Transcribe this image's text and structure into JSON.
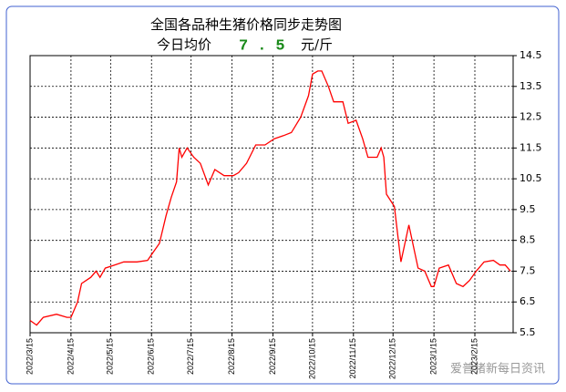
{
  "chart_data": {
    "type": "line",
    "title": "全国各品种生猪价格同步走势图",
    "subtitle": "今日均价",
    "today_price": 7.5,
    "unit": "元/斤",
    "watermark": "爱普猪新每日资讯",
    "xlim": [
      0,
      366
    ],
    "ylim": [
      5.5,
      14.5
    ],
    "grid": true,
    "yticks": [
      5.5,
      6.5,
      7.5,
      8.5,
      9.5,
      10.5,
      11.5,
      12.5,
      13.5,
      14.5
    ],
    "xticks": [
      {
        "value": 0,
        "label": "2022/3/15"
      },
      {
        "value": 31,
        "label": "2022/4/15"
      },
      {
        "value": 61,
        "label": "2022/5/15"
      },
      {
        "value": 92,
        "label": "2022/6/15"
      },
      {
        "value": 122,
        "label": "2022/7/15"
      },
      {
        "value": 153,
        "label": "2022/8/15"
      },
      {
        "value": 184,
        "label": "2022/9/15"
      },
      {
        "value": 214,
        "label": "2022/10/15"
      },
      {
        "value": 245,
        "label": "2022/11/15"
      },
      {
        "value": 275,
        "label": "2022/12/15"
      },
      {
        "value": 306,
        "label": "2023/1/15"
      },
      {
        "value": 337,
        "label": "2023/2/15"
      }
    ],
    "series": [
      {
        "color": "#ff0000",
        "x": [
          0,
          5,
          10,
          20,
          28,
          31,
          36,
          39,
          46,
          50,
          53,
          57,
          64,
          71,
          81,
          89,
          93,
          98,
          103,
          107,
          111,
          113,
          115,
          119,
          124,
          129,
          135,
          140,
          147,
          154,
          158,
          164,
          171,
          178,
          185,
          192,
          198,
          205,
          211,
          214,
          218,
          221,
          226,
          230,
          237,
          241,
          247,
          252,
          256,
          263,
          266,
          268,
          270,
          276,
          281,
          287,
          294,
          299,
          304,
          306,
          310,
          317,
          323,
          328,
          333,
          338,
          344,
          351,
          356,
          360,
          364
        ],
        "values": [
          5.9,
          5.75,
          6.0,
          6.1,
          6.0,
          6.0,
          6.5,
          7.1,
          7.3,
          7.5,
          7.3,
          7.6,
          7.7,
          7.8,
          7.8,
          7.85,
          8.1,
          8.4,
          9.3,
          9.9,
          10.4,
          11.5,
          11.2,
          11.5,
          11.2,
          11.0,
          10.3,
          10.8,
          10.6,
          10.6,
          10.7,
          11.0,
          11.6,
          11.6,
          11.8,
          11.9,
          12.0,
          12.5,
          13.2,
          13.9,
          14.0,
          14.0,
          13.5,
          13.0,
          13.0,
          12.3,
          12.4,
          11.8,
          11.2,
          11.2,
          11.5,
          11.2,
          10.0,
          9.6,
          7.8,
          9.0,
          7.6,
          7.5,
          7.0,
          7.0,
          7.6,
          7.7,
          7.1,
          7.0,
          7.2,
          7.5,
          7.8,
          7.85,
          7.7,
          7.7,
          7.5
        ]
      }
    ]
  }
}
